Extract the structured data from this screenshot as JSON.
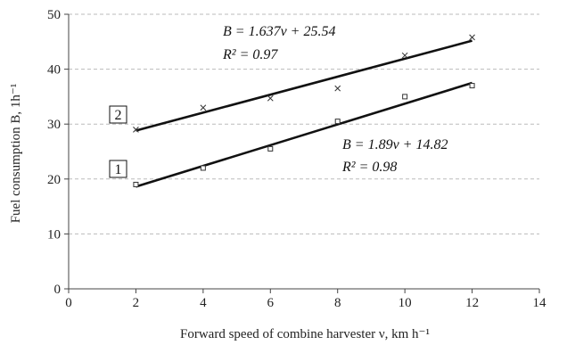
{
  "chart_data": {
    "type": "scatter",
    "xlabel": "Forward speed of combine harvester ν, km h⁻¹",
    "ylabel": "Fuel consumption B, 1h⁻¹",
    "xlim": [
      0,
      14
    ],
    "ylim": [
      0,
      50
    ],
    "x_ticks": [
      "0",
      "2",
      "4",
      "6",
      "8",
      "10",
      "12",
      "14"
    ],
    "y_ticks": [
      "0",
      "10",
      "20",
      "30",
      "40",
      "50"
    ],
    "grid": {
      "horizontal": true,
      "style": "dashed"
    },
    "series": [
      {
        "name": "1",
        "marker": "square",
        "x": [
          2,
          4,
          6,
          8,
          10,
          12
        ],
        "y": [
          19,
          22,
          25.5,
          30.5,
          35,
          37
        ],
        "fit": {
          "slope": 1.89,
          "intercept": 14.82,
          "x_range": [
            2,
            12
          ]
        },
        "equation": "B = 1.89ν + 14.82",
        "r2_label": "R² = 0.98"
      },
      {
        "name": "2",
        "marker": "x",
        "x": [
          2,
          4,
          6,
          8,
          10,
          12
        ],
        "y": [
          29,
          33,
          34.7,
          36.5,
          42.5,
          45.8
        ],
        "fit": {
          "slope": 1.637,
          "intercept": 25.54,
          "x_range": [
            2,
            12
          ]
        },
        "equation": "B = 1.637ν + 25.54",
        "r2_label": "R² = 0.97"
      }
    ]
  },
  "colors": {
    "axis": "#444444",
    "grid": "#bbbbbb",
    "line": "#111111",
    "marker": "#333333"
  }
}
